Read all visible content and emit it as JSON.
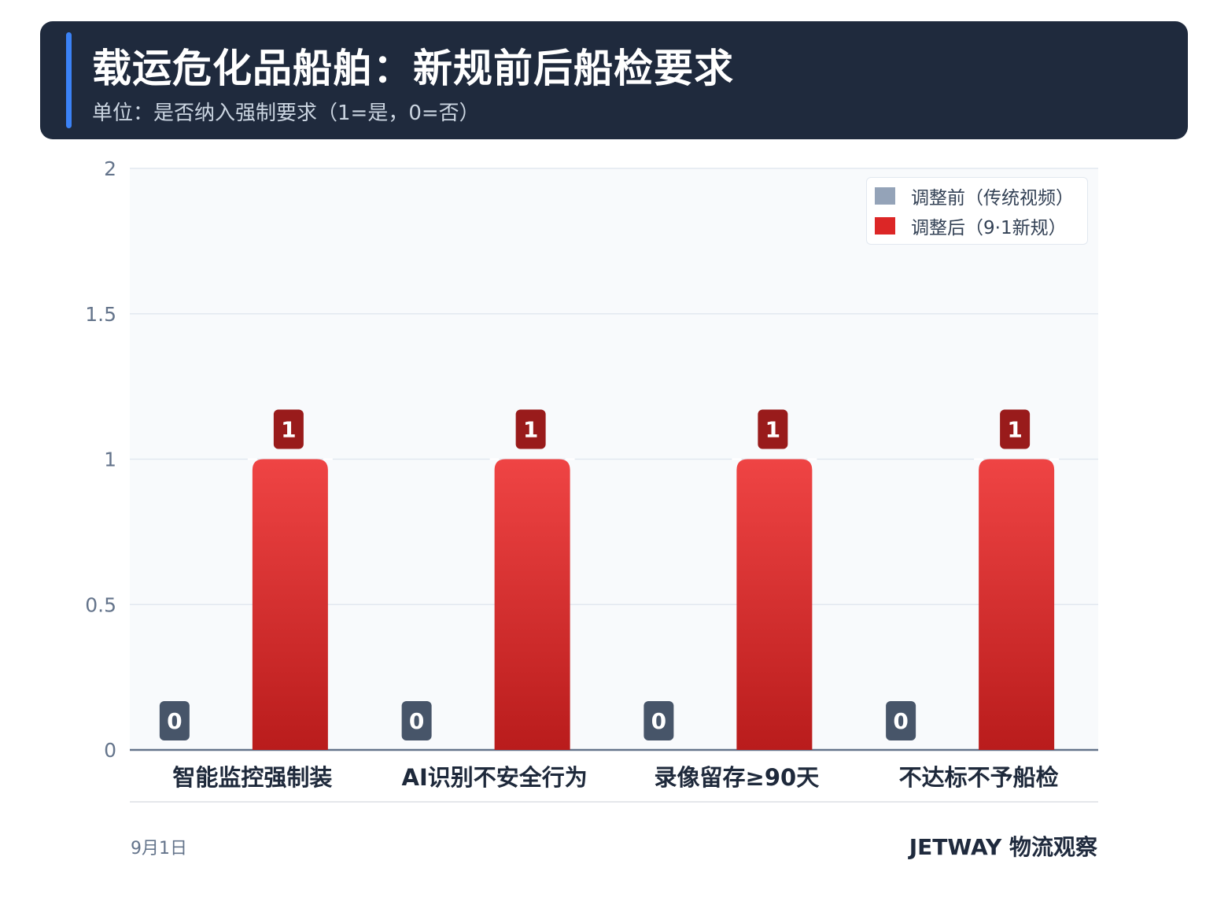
{
  "header": {
    "title": "载运危化品船舶：新规前后船检要求",
    "subtitle": "单位：是否纳入强制要求（1=是，0=否）"
  },
  "footer": {
    "date": "9月1日",
    "brand": "JETWAY 物流观察"
  },
  "colors": {
    "before": "#94a3b8",
    "after": "#dc2626",
    "after_gradient_top": "#ef4444",
    "after_gradient_bottom": "#b91c1c",
    "before_label_bg": "#475569",
    "after_label_bg": "#991b1b",
    "plot_bg": "#f8fafc"
  },
  "chart_data": {
    "type": "bar",
    "categories": [
      "智能监控强制装",
      "AI识别不安全行为",
      "录像留存≥90天",
      "不达标不予船检"
    ],
    "series": [
      {
        "name": "调整前（传统视频）",
        "values": [
          0,
          0,
          0,
          0
        ]
      },
      {
        "name": "调整后（9·1新规）",
        "values": [
          1,
          1,
          1,
          1
        ]
      }
    ],
    "ylim": [
      0,
      2
    ],
    "yticks": [
      "0",
      "0.5",
      "1",
      "1.5",
      "2"
    ],
    "grid": true,
    "legend_position": "top-right"
  }
}
